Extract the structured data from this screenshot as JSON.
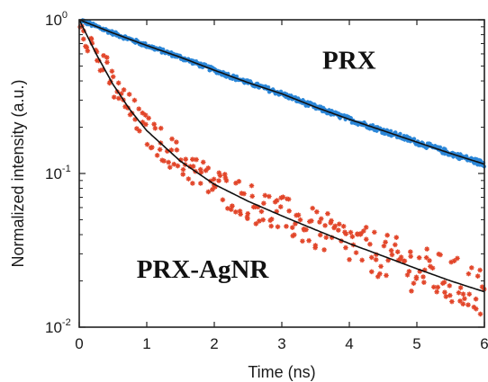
{
  "chart_data": {
    "type": "scatter",
    "x_axis": {
      "label": "Time (ns)",
      "range": [
        0,
        6
      ],
      "ticks": [
        0,
        1,
        2,
        3,
        4,
        5,
        6
      ],
      "tick_labels": [
        "0",
        "1",
        "2",
        "3",
        "4",
        "5",
        "6"
      ]
    },
    "y_axis": {
      "label": "Normalized intensity (a.u.)",
      "scale": "log",
      "range": [
        0.01,
        1
      ],
      "ticks": [
        {
          "value": 1,
          "base": "10",
          "exp": "0"
        },
        {
          "value": 0.1,
          "base": "10",
          "exp": "-1"
        },
        {
          "value": 0.01,
          "base": "10",
          "exp": "-2"
        }
      ]
    },
    "grid": false,
    "annotations": [
      "PRX",
      "PRX-AgNR"
    ],
    "series": [
      {
        "name": "PRX",
        "kind": "data",
        "color": "#2a86d8",
        "marker": "*",
        "points": [
          [
            0,
            1.0
          ],
          [
            0.5,
            0.82
          ],
          [
            1,
            0.68
          ],
          [
            1.5,
            0.57
          ],
          [
            2,
            0.47
          ],
          [
            2.5,
            0.39
          ],
          [
            3,
            0.33
          ],
          [
            3.5,
            0.27
          ],
          [
            4,
            0.225
          ],
          [
            4.5,
            0.19
          ],
          [
            5,
            0.16
          ],
          [
            5.5,
            0.135
          ],
          [
            6,
            0.115
          ]
        ]
      },
      {
        "name": "PRX fit",
        "kind": "fit",
        "color": "#111111",
        "points": [
          [
            0,
            1.0
          ],
          [
            0.5,
            0.82
          ],
          [
            1,
            0.68
          ],
          [
            1.5,
            0.57
          ],
          [
            2,
            0.47
          ],
          [
            2.5,
            0.39
          ],
          [
            3,
            0.33
          ],
          [
            3.5,
            0.27
          ],
          [
            4,
            0.225
          ],
          [
            4.5,
            0.19
          ],
          [
            5,
            0.16
          ],
          [
            5.5,
            0.135
          ],
          [
            6,
            0.115
          ]
        ]
      },
      {
        "name": "PRX-AgNR",
        "kind": "data",
        "color": "#e2462a",
        "marker": "*",
        "points": [
          [
            0,
            1.0
          ],
          [
            0.25,
            0.6
          ],
          [
            0.5,
            0.38
          ],
          [
            0.75,
            0.26
          ],
          [
            1,
            0.19
          ],
          [
            1.5,
            0.12
          ],
          [
            2,
            0.085
          ],
          [
            2.5,
            0.066
          ],
          [
            3,
            0.053
          ],
          [
            3.5,
            0.043
          ],
          [
            4,
            0.035
          ],
          [
            4.5,
            0.029
          ],
          [
            5,
            0.024
          ],
          [
            5.5,
            0.02
          ],
          [
            6,
            0.017
          ]
        ]
      },
      {
        "name": "PRX-AgNR fit",
        "kind": "fit",
        "color": "#111111",
        "points": [
          [
            0,
            1.0
          ],
          [
            0.25,
            0.6
          ],
          [
            0.5,
            0.38
          ],
          [
            0.75,
            0.26
          ],
          [
            1,
            0.19
          ],
          [
            1.5,
            0.12
          ],
          [
            2,
            0.085
          ],
          [
            2.5,
            0.066
          ],
          [
            3,
            0.053
          ],
          [
            3.5,
            0.043
          ],
          [
            4,
            0.035
          ],
          [
            4.5,
            0.029
          ],
          [
            5,
            0.024
          ],
          [
            5.5,
            0.02
          ],
          [
            6,
            0.017
          ]
        ]
      }
    ]
  }
}
